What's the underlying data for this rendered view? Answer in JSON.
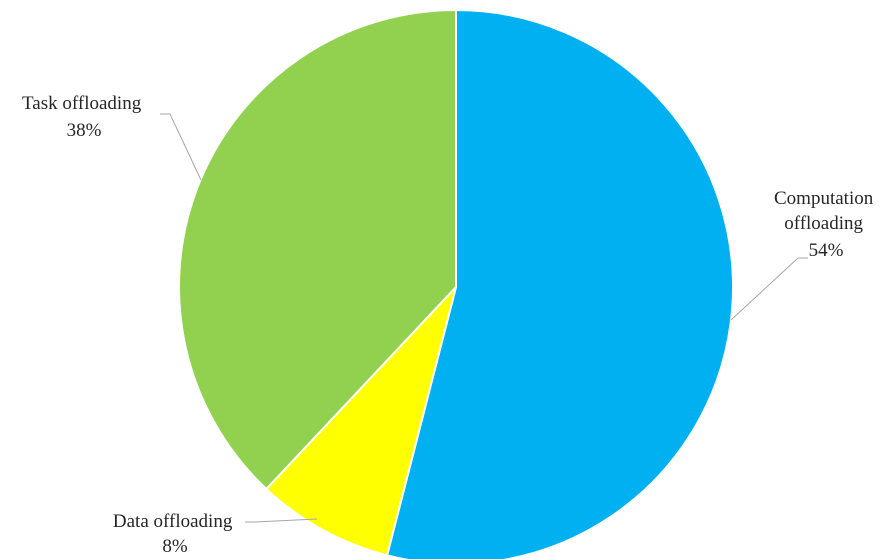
{
  "chart_data": {
    "type": "pie",
    "title": "",
    "slices": [
      {
        "label_lines": [
          "Computation",
          "offloading"
        ],
        "value": 54,
        "pct_text": "54%",
        "color": "#00b0f0"
      },
      {
        "label_lines": [
          "Data offloading"
        ],
        "value": 8,
        "pct_text": "8%",
        "color": "#ffff00"
      },
      {
        "label_lines": [
          "Task offloading"
        ],
        "value": 38,
        "pct_text": "38%",
        "color": "#92d050"
      }
    ],
    "start_angle_deg": 0,
    "direction": "clockwise",
    "legend": "none",
    "data_labels": "outside with leader lines"
  }
}
